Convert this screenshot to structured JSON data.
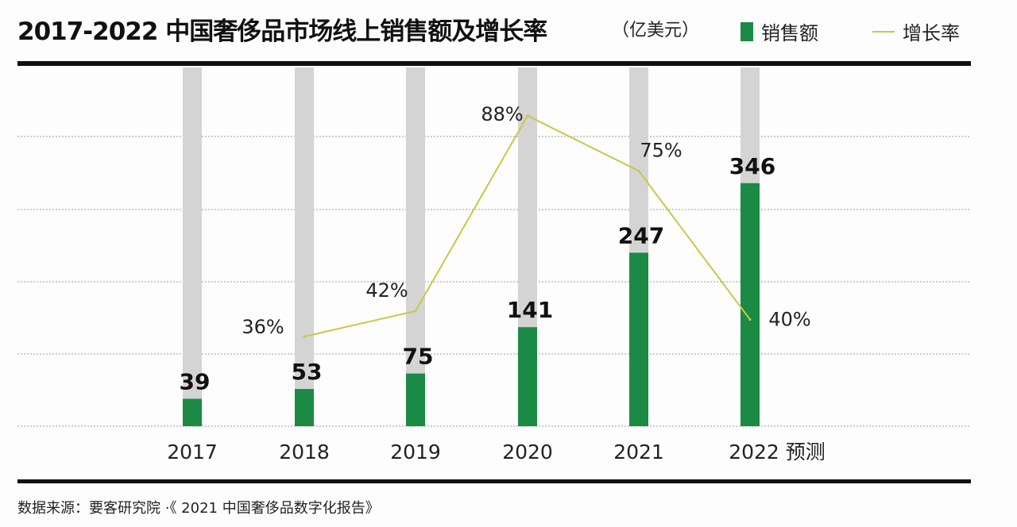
{
  "header": {
    "title": "2017-2022 中国奢侈品市场线上销售额及增长率",
    "unit": "（亿美元）"
  },
  "legend": [
    {
      "label": "销售额",
      "color": "#1a8a45",
      "kind": "bar"
    },
    {
      "label": "增长率",
      "color": "#c8c84a",
      "kind": "line"
    }
  ],
  "footer": {
    "source": "数据来源：要客研究院 ·《 2021 中国奢侈品数字化报告》"
  },
  "chart_data": {
    "type": "bar",
    "title": "2017-2022 中国奢侈品市场线上销售额及增长率",
    "unit": "（亿美元）",
    "categories": [
      "2017",
      "2018",
      "2019",
      "2020",
      "2021",
      "2022 预测"
    ],
    "grid": true,
    "legend_position": "top-right",
    "series": [
      {
        "name": "销售额",
        "type": "bar",
        "color": "#1a8a45",
        "values": [
          39,
          53,
          75,
          141,
          247,
          346
        ],
        "labels": [
          "39",
          "53",
          "75",
          "141",
          "247",
          "346"
        ]
      },
      {
        "name": "增长率",
        "type": "line",
        "color": "#c8c84a",
        "values": [
          null,
          36,
          42,
          88,
          75,
          40
        ],
        "labels": [
          "",
          "36%",
          "42%",
          "88%",
          "75%",
          "40%"
        ]
      }
    ],
    "background_bar_color": "#d4d4d4"
  }
}
